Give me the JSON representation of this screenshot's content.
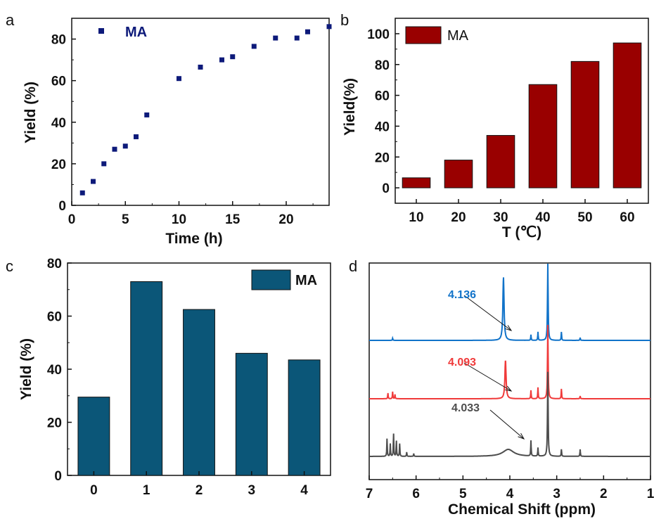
{
  "chart_data": [
    {
      "panel": "a",
      "type": "scatter",
      "xlabel": "Time (h)",
      "ylabel": "Yield (%)",
      "xlim": [
        0,
        24
      ],
      "ylim": [
        0,
        90
      ],
      "xticks": [
        "0",
        "5",
        "10",
        "15",
        "20"
      ],
      "yticks": [
        "0",
        "20",
        "40",
        "60",
        "80"
      ],
      "grid": false,
      "legend_position": "top-left",
      "series": [
        {
          "name": "MA",
          "color": "#0d1a7a",
          "x": [
            1,
            2,
            3,
            4,
            5,
            6,
            7,
            10,
            12,
            14,
            15,
            17,
            19,
            21,
            22,
            24
          ],
          "y": [
            6,
            11.5,
            20,
            27,
            28.5,
            33,
            43.5,
            61,
            66.5,
            70,
            71.5,
            76.5,
            80.5,
            80.5,
            83.5,
            86
          ]
        }
      ]
    },
    {
      "panel": "b",
      "type": "bar",
      "xlabel": "T (℃)",
      "ylabel": "Yield(%)",
      "ylim": [
        -10,
        110
      ],
      "yticks": [
        "0",
        "20",
        "40",
        "60",
        "80",
        "100"
      ],
      "categories": [
        "10",
        "20",
        "30",
        "40",
        "50",
        "60"
      ],
      "grid": false,
      "legend_position": "top-left",
      "series": [
        {
          "name": "MA",
          "color": "#990000",
          "values": [
            6.5,
            18,
            34,
            67,
            82,
            94
          ]
        }
      ]
    },
    {
      "panel": "c",
      "type": "bar",
      "xlabel": "",
      "ylabel": "Yield (%)",
      "ylim": [
        0,
        80
      ],
      "yticks": [
        "0",
        "20",
        "40",
        "60",
        "80"
      ],
      "categories": [
        "0",
        "1",
        "2",
        "3",
        "4"
      ],
      "grid": false,
      "legend_position": "top-right",
      "series": [
        {
          "name": "MA",
          "color": "#0b5678",
          "values": [
            29.5,
            73,
            62.5,
            46,
            43.5
          ]
        }
      ]
    },
    {
      "panel": "d",
      "type": "line",
      "xlabel": "Chemical Shift (ppm)",
      "ylabel": "",
      "xlim": [
        7,
        1
      ],
      "xticks": [
        "7",
        "6",
        "5",
        "4",
        "3",
        "2",
        "1"
      ],
      "grid": false,
      "traces": [
        {
          "label": "4.136",
          "color": "#1173c9",
          "peak_ppm": 4.136,
          "broad": false
        },
        {
          "label": "4.093",
          "color": "#f03a3a",
          "peak_ppm": 4.093,
          "broad": false
        },
        {
          "label": "4.033",
          "color": "#4d4d4d",
          "peak_ppm": 4.033,
          "broad": true
        }
      ]
    }
  ],
  "panel_labels": {
    "a": "a",
    "b": "b",
    "c": "c",
    "d": "d"
  }
}
